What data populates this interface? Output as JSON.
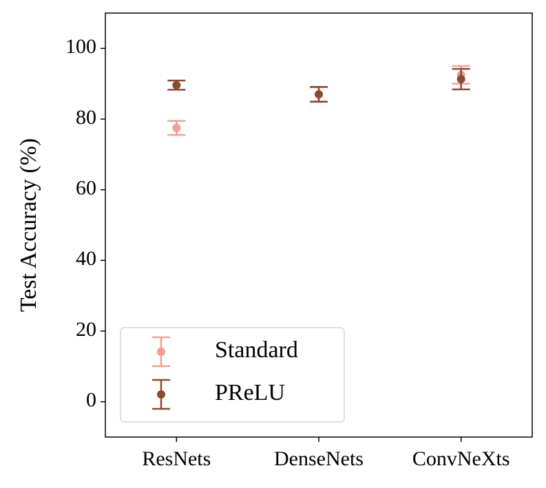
{
  "chart_data": {
    "type": "errorbar",
    "y_label": "Test Accuracy (%)",
    "categories": [
      "ResNets",
      "DenseNets",
      "ConvNeXts"
    ],
    "series": [
      {
        "name": "Standard",
        "color": "#f79a98",
        "values": [
          77.5,
          87,
          92.5
        ],
        "errors": [
          2,
          2,
          2.5
        ]
      },
      {
        "name": "PReLU",
        "color": "#8b4a32",
        "values": [
          89.6,
          87,
          91.3
        ],
        "errors": [
          1.3,
          2.1,
          2.9
        ]
      }
    ],
    "ylim": [
      -10,
      110
    ],
    "yticks": [
      0,
      20,
      40,
      60,
      80,
      100
    ],
    "legend": "lower left",
    "grid": false
  }
}
